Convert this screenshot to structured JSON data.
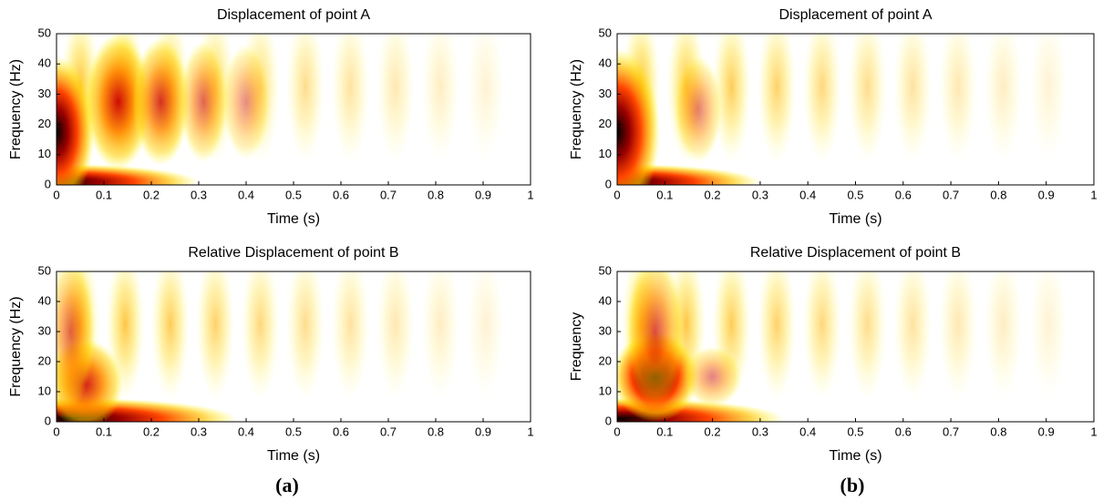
{
  "chart_data": [
    {
      "type": "heatmap",
      "title": "Displacement of point A",
      "xlabel": "Time (s)",
      "ylabel": "Frequency (Hz)",
      "xlim": [
        0,
        1
      ],
      "xticks": [
        0,
        0.1,
        0.2,
        0.3,
        0.4,
        0.5,
        0.6,
        0.7,
        0.8,
        0.9,
        1
      ],
      "ylim": [
        0,
        50
      ],
      "yticks": [
        0,
        10,
        20,
        30,
        40,
        50
      ],
      "colormap": "hot"
    },
    {
      "type": "heatmap",
      "title": "Displacement of point A",
      "xlabel": "Time (s)",
      "ylabel": "Frequency (Hz)",
      "xlim": [
        0,
        1
      ],
      "xticks": [
        0,
        0.1,
        0.2,
        0.3,
        0.4,
        0.5,
        0.6,
        0.7,
        0.8,
        0.9,
        1
      ],
      "ylim": [
        0,
        50
      ],
      "yticks": [
        0,
        10,
        20,
        30,
        40,
        50
      ],
      "colormap": "hot"
    },
    {
      "type": "heatmap",
      "title": "Relative Displacement of point B",
      "xlabel": "Time (s)",
      "ylabel": "Frequency (Hz)",
      "xlim": [
        0,
        1
      ],
      "xticks": [
        0,
        0.1,
        0.2,
        0.3,
        0.4,
        0.5,
        0.6,
        0.7,
        0.8,
        0.9,
        1
      ],
      "ylim": [
        0,
        50
      ],
      "yticks": [
        0,
        10,
        20,
        30,
        40,
        50
      ],
      "colormap": "hot"
    },
    {
      "type": "heatmap",
      "title": "Relative Displacement of point B",
      "xlabel": "Time (s)",
      "ylabel": "Frequency",
      "xlim": [
        0,
        1
      ],
      "xticks": [
        0,
        0.1,
        0.2,
        0.3,
        0.4,
        0.5,
        0.6,
        0.7,
        0.8,
        0.9,
        1
      ],
      "ylim": [
        0,
        50
      ],
      "yticks": [
        0,
        10,
        20,
        30,
        40,
        50
      ],
      "colormap": "hot"
    }
  ],
  "captions": [
    "(a)",
    "(b)"
  ]
}
